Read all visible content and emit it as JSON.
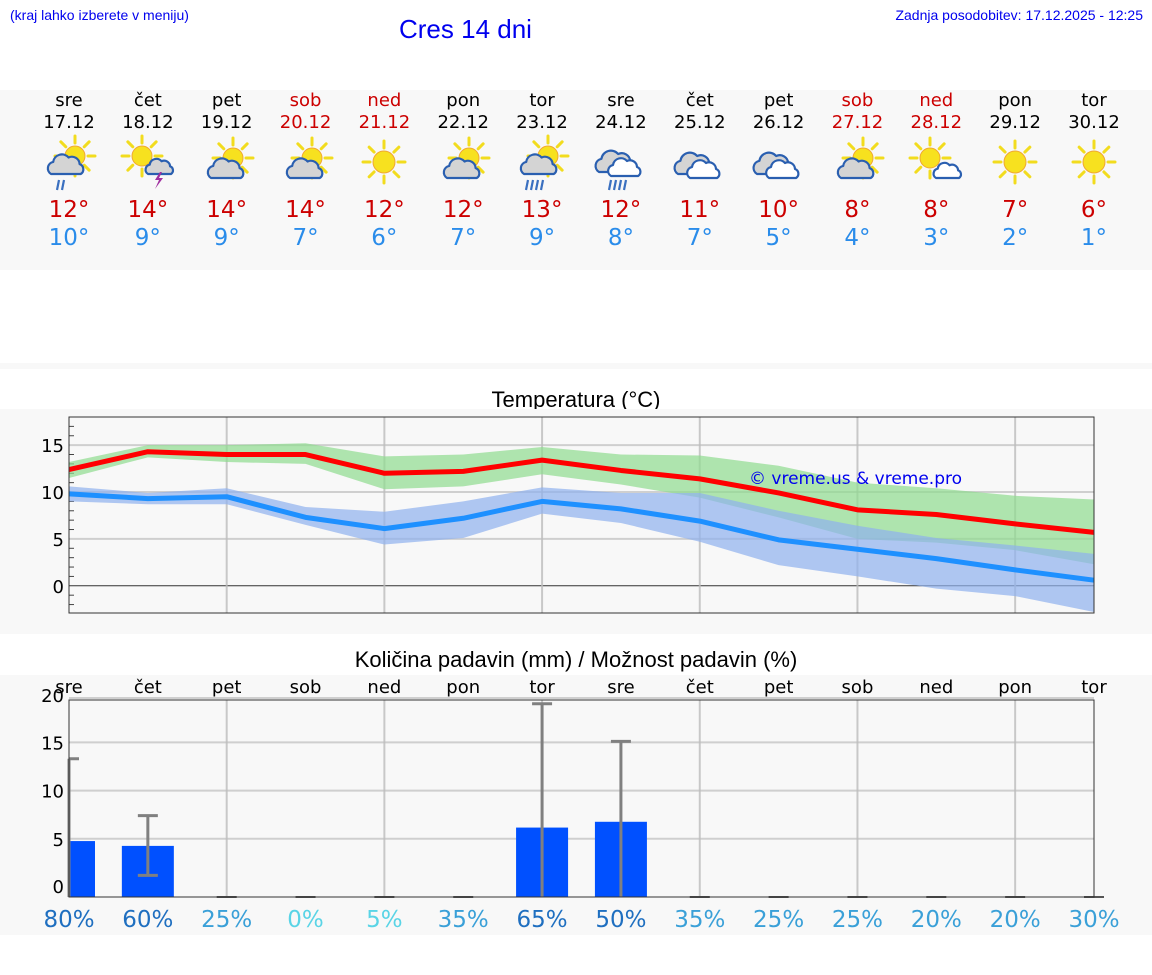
{
  "header": {
    "hint": "(kraj lahko izberete v meniju)",
    "title": "Cres 14 dni",
    "last_update": "Zadnja posodobitev: 17.12.2025 - 12:25"
  },
  "colors": {
    "max_temp": "#cc0000",
    "min_temp": "#2a8cea",
    "max_line": "#ff0000",
    "min_line": "#1e90ff",
    "max_band": "#aee8ae",
    "min_band": "#aec6f2",
    "bar": "#0050ff",
    "errorbar": "#808080",
    "weekend": "#cc0000",
    "link": "#0000ee"
  },
  "days": [
    {
      "name": "sre",
      "date": "17.12",
      "weekend": false,
      "icon": "sun-cloud-light-rain-icon",
      "max": "12°",
      "min": "10°"
    },
    {
      "name": "čet",
      "date": "18.12",
      "weekend": false,
      "icon": "sun-cloud-thunder-icon",
      "max": "14°",
      "min": "9°"
    },
    {
      "name": "pet",
      "date": "19.12",
      "weekend": false,
      "icon": "partly-cloudy-icon",
      "max": "14°",
      "min": "9°"
    },
    {
      "name": "sob",
      "date": "20.12",
      "weekend": true,
      "icon": "partly-cloudy-icon",
      "max": "14°",
      "min": "7°"
    },
    {
      "name": "ned",
      "date": "21.12",
      "weekend": true,
      "icon": "sun-icon",
      "max": "12°",
      "min": "6°"
    },
    {
      "name": "pon",
      "date": "22.12",
      "weekend": false,
      "icon": "partly-cloudy-icon",
      "max": "12°",
      "min": "7°"
    },
    {
      "name": "tor",
      "date": "23.12",
      "weekend": false,
      "icon": "sun-cloud-rain-icon",
      "max": "13°",
      "min": "9°"
    },
    {
      "name": "sre",
      "date": "24.12",
      "weekend": false,
      "icon": "cloud-rain-icon",
      "max": "12°",
      "min": "8°"
    },
    {
      "name": "čet",
      "date": "25.12",
      "weekend": false,
      "icon": "overcast-icon",
      "max": "11°",
      "min": "7°"
    },
    {
      "name": "pet",
      "date": "26.12",
      "weekend": false,
      "icon": "overcast-icon",
      "max": "10°",
      "min": "5°"
    },
    {
      "name": "sob",
      "date": "27.12",
      "weekend": true,
      "icon": "partly-cloudy-icon",
      "max": "8°",
      "min": "4°"
    },
    {
      "name": "ned",
      "date": "28.12",
      "weekend": true,
      "icon": "sun-small-cloud-icon",
      "max": "8°",
      "min": "3°"
    },
    {
      "name": "pon",
      "date": "29.12",
      "weekend": false,
      "icon": "sun-icon",
      "max": "7°",
      "min": "2°"
    },
    {
      "name": "tor",
      "date": "30.12",
      "weekend": false,
      "icon": "sun-icon",
      "max": "6°",
      "min": "1°"
    }
  ],
  "chart_data": [
    {
      "type": "line",
      "title": "Temperatura (°C)",
      "watermark": "© vreme.us & vreme.pro",
      "xlabel": "",
      "ylabel": "",
      "categories": [
        "17.12",
        "18.12",
        "19.12",
        "20.12",
        "21.12",
        "22.12",
        "23.12",
        "24.12",
        "25.12",
        "26.12",
        "27.12",
        "28.12",
        "29.12",
        "30.12"
      ],
      "ylim": [
        -2.9,
        18
      ],
      "yticks": [
        0,
        5,
        10,
        15
      ],
      "grid": true,
      "series": [
        {
          "name": "max",
          "color": "#ff0000",
          "values": [
            12.4,
            14.3,
            14.0,
            14.0,
            12.0,
            12.2,
            13.4,
            12.3,
            11.4,
            9.9,
            8.1,
            7.6,
            6.6,
            5.7
          ],
          "band_low": [
            11.5,
            13.7,
            13.2,
            13.0,
            10.3,
            10.6,
            11.9,
            10.8,
            9.4,
            7.3,
            5.0,
            4.6,
            3.8,
            2.3
          ],
          "band_high": [
            13.2,
            15.0,
            15.0,
            15.2,
            13.8,
            14.0,
            14.8,
            14.0,
            13.9,
            12.8,
            11.0,
            10.4,
            9.6,
            9.2
          ]
        },
        {
          "name": "min",
          "color": "#1e90ff",
          "values": [
            9.8,
            9.3,
            9.5,
            7.3,
            6.1,
            7.2,
            9.0,
            8.2,
            6.9,
            4.9,
            3.9,
            2.9,
            1.7,
            0.6
          ],
          "band_low": [
            9.0,
            8.7,
            8.7,
            6.5,
            4.4,
            5.1,
            7.7,
            6.7,
            4.7,
            2.2,
            1.0,
            -0.3,
            -1.1,
            -2.8
          ],
          "band_high": [
            10.6,
            9.9,
            10.4,
            8.4,
            7.9,
            9.0,
            10.5,
            9.9,
            9.9,
            8.0,
            6.4,
            5.1,
            4.3,
            3.4
          ]
        }
      ]
    },
    {
      "type": "bar",
      "title": "Količina padavin (mm) / Možnost padavin (%)",
      "xlabel": "",
      "ylabel": "",
      "categories": [
        "sre",
        "čet",
        "pet",
        "sob",
        "ned",
        "pon",
        "tor",
        "sre",
        "čet",
        "pet",
        "sob",
        "ned",
        "pon",
        "tor"
      ],
      "ylim": [
        -1,
        20
      ],
      "yticks": [
        0,
        5,
        10,
        15,
        20
      ],
      "grid": true,
      "values": [
        4.8,
        4.3,
        0,
        0,
        0,
        0,
        6.2,
        6.8,
        0,
        0,
        0,
        0,
        0,
        0
      ],
      "error_low": [
        0,
        1.2,
        0,
        0,
        0,
        0,
        0,
        0,
        0,
        0,
        0,
        0,
        0,
        0
      ],
      "error_high": [
        13.3,
        7.4,
        0,
        0,
        0,
        0,
        19.0,
        15.1,
        0,
        0,
        0,
        0,
        0,
        0
      ],
      "probability_labels": [
        "80%",
        "60%",
        "25%",
        "0%",
        "5%",
        "35%",
        "65%",
        "50%",
        "35%",
        "25%",
        "25%",
        "20%",
        "20%",
        "30%"
      ],
      "probability": [
        80,
        60,
        25,
        0,
        5,
        35,
        65,
        50,
        35,
        25,
        25,
        20,
        20,
        30
      ]
    }
  ]
}
